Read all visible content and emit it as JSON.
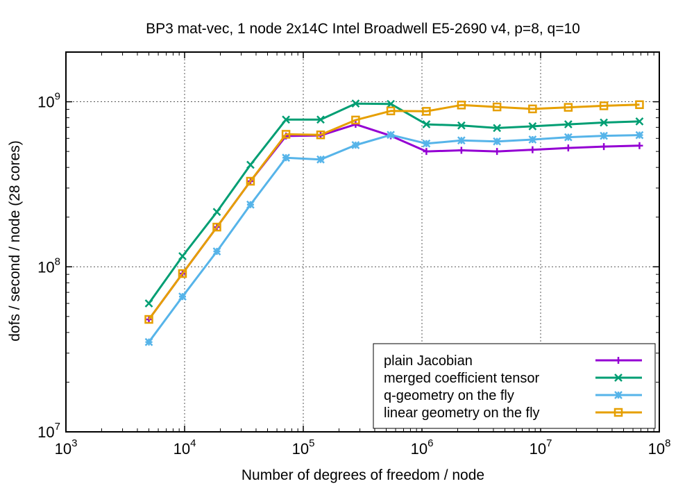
{
  "chart_data": {
    "type": "line",
    "title": "BP3 mat-vec, 1 node 2x14C Intel Broadwell E5-2690 v4, p=8, q=10",
    "xlabel": "Number of degrees of freedom / node",
    "ylabel": "dofs / second / node (28 cores)",
    "xscale": "log",
    "yscale": "log",
    "xlim": [
      1000,
      100000000
    ],
    "ylim": [
      10000000,
      2000000000
    ],
    "grid": true,
    "legend_position": "bottom-right",
    "x_ticks": [
      {
        "value": 1000,
        "base": "10",
        "exp": "3"
      },
      {
        "value": 10000,
        "base": "10",
        "exp": "4"
      },
      {
        "value": 100000,
        "base": "10",
        "exp": "5"
      },
      {
        "value": 1000000,
        "base": "10",
        "exp": "6"
      },
      {
        "value": 10000000,
        "base": "10",
        "exp": "7"
      },
      {
        "value": 100000000,
        "base": "10",
        "exp": "8"
      }
    ],
    "y_ticks": [
      {
        "value": 10000000,
        "base": "10",
        "exp": "7"
      },
      {
        "value": 100000000,
        "base": "10",
        "exp": "8"
      },
      {
        "value": 1000000000,
        "base": "10",
        "exp": "9"
      }
    ],
    "x": [
      5000,
      9600,
      18700,
      35900,
      71500,
      140000,
      276000,
      546000,
      1090000,
      2150000,
      4290000,
      8550000,
      17100000,
      34100000,
      68100000
    ],
    "series": [
      {
        "name": "plain Jacobian",
        "color": "#9400d3",
        "marker": "plus",
        "values": [
          48000000,
          91000000,
          174000000,
          330000000,
          620000000,
          625000000,
          730000000,
          622000000,
          500000000,
          508000000,
          500000000,
          512000000,
          525000000,
          535000000,
          542000000
        ]
      },
      {
        "name": "merged coefficient tensor",
        "color": "#009e73",
        "marker": "x",
        "values": [
          60000000,
          116000000,
          215000000,
          415000000,
          780000000,
          780000000,
          975000000,
          970000000,
          730000000,
          718000000,
          693000000,
          710000000,
          730000000,
          748000000,
          760000000
        ]
      },
      {
        "name": "q-geometry on the fly",
        "color": "#56b4e9",
        "marker": "star",
        "values": [
          35000000,
          66000000,
          124000000,
          238000000,
          458000000,
          447000000,
          546000000,
          630000000,
          558000000,
          583000000,
          575000000,
          590000000,
          610000000,
          622000000,
          628000000
        ]
      },
      {
        "name": "linear geometry on the fly",
        "color": "#e69f00",
        "marker": "square",
        "values": [
          48000000,
          91000000,
          174000000,
          330000000,
          635000000,
          630000000,
          775000000,
          880000000,
          875000000,
          955000000,
          930000000,
          905000000,
          925000000,
          945000000,
          960000000
        ]
      }
    ]
  }
}
